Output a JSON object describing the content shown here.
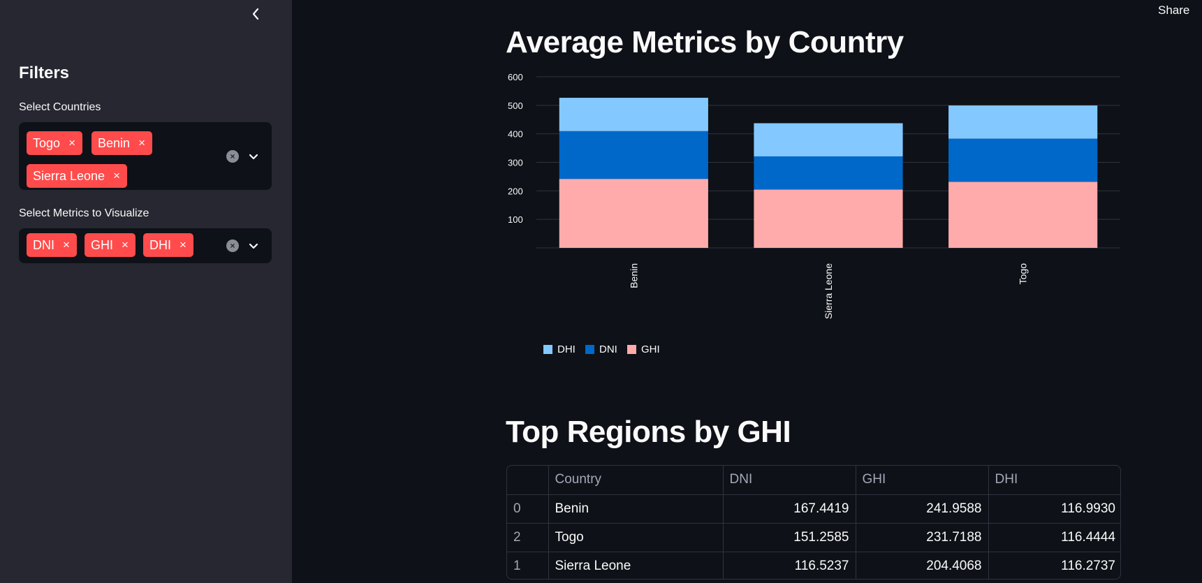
{
  "header": {
    "share_label": "Share"
  },
  "sidebar": {
    "heading": "Filters",
    "countries": {
      "label": "Select Countries",
      "selected": [
        "Togo",
        "Benin",
        "Sierra Leone"
      ]
    },
    "metrics": {
      "label": "Select Metrics to Visualize",
      "selected": [
        "DNI",
        "GHI",
        "DHI"
      ]
    },
    "tag_remove_glyph": "×",
    "clear_glyph": "×"
  },
  "main": {
    "chart_title": "Average Metrics by Country",
    "table_title": "Top Regions by GHI"
  },
  "colors": {
    "DHI": "#83c9ff",
    "DNI": "#0068c9",
    "GHI": "#ffabab",
    "accent": "#ff4b4b"
  },
  "chart_data": {
    "type": "bar",
    "stacked": true,
    "categories": [
      "Benin",
      "Sierra Leone",
      "Togo"
    ],
    "series": [
      {
        "name": "GHI",
        "values": [
          241.9588,
          204.4068,
          231.7188
        ]
      },
      {
        "name": "DNI",
        "values": [
          167.4419,
          116.5237,
          151.2585
        ]
      },
      {
        "name": "DHI",
        "values": [
          116.993,
          116.2737,
          116.4444
        ]
      }
    ],
    "yticks": [
      100,
      200,
      300,
      400,
      500,
      600
    ],
    "ylim": [
      0,
      600
    ],
    "legend": [
      "DHI",
      "DNI",
      "GHI"
    ],
    "legend_position": "bottom-left",
    "grid": true
  },
  "table": {
    "columns": [
      "",
      "Country",
      "DNI",
      "GHI",
      "DHI"
    ],
    "rows": [
      {
        "index": "0",
        "Country": "Benin",
        "DNI": "167.4419",
        "GHI": "241.9588",
        "DHI": "116.9930"
      },
      {
        "index": "2",
        "Country": "Togo",
        "DNI": "151.2585",
        "GHI": "231.7188",
        "DHI": "116.4444"
      },
      {
        "index": "1",
        "Country": "Sierra Leone",
        "DNI": "116.5237",
        "GHI": "204.4068",
        "DHI": "116.2737"
      }
    ]
  }
}
